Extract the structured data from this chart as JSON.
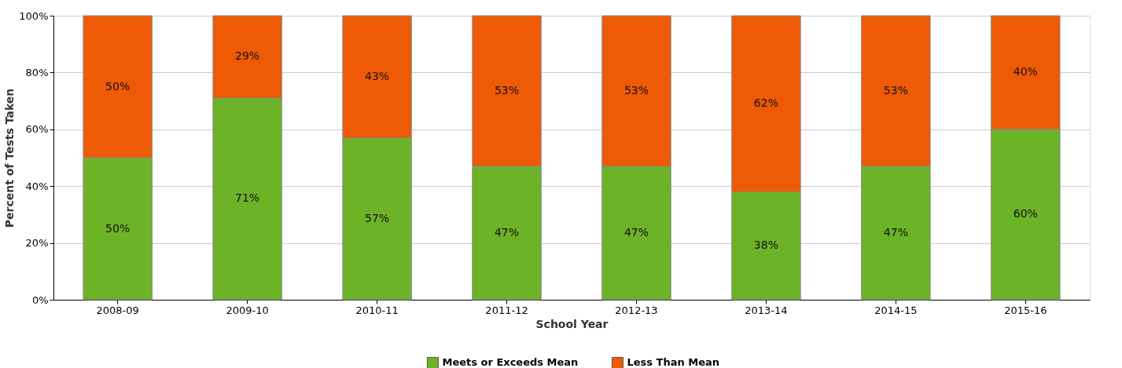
{
  "chart_data": {
    "type": "bar",
    "stacked": true,
    "xlabel": "School Year",
    "ylabel": "Percent of Tests Taken",
    "categories": [
      "2008-09",
      "2009-10",
      "2010-11",
      "2011-12",
      "2012-13",
      "2013-14",
      "2014-15",
      "2015-16"
    ],
    "series": [
      {
        "name": "Meets or Exceeds Mean",
        "color": "#6cb328",
        "values": [
          50,
          71,
          57,
          47,
          47,
          38,
          47,
          60
        ],
        "value_labels": [
          "50%",
          "71%",
          "57%",
          "47%",
          "47%",
          "38%",
          "47%",
          "60%"
        ]
      },
      {
        "name": "Less Than Mean",
        "color": "#ee5a06",
        "values": [
          50,
          29,
          43,
          53,
          53,
          62,
          53,
          40
        ],
        "value_labels": [
          "50%",
          "29%",
          "43%",
          "53%",
          "53%",
          "62%",
          "53%",
          "40%"
        ]
      }
    ],
    "ylim": [
      0,
      100
    ],
    "yticks": [
      {
        "value": 0,
        "label": "0%"
      },
      {
        "value": 20,
        "label": "20%"
      },
      {
        "value": 40,
        "label": "40%"
      },
      {
        "value": 60,
        "label": "60%"
      },
      {
        "value": 80,
        "label": "80%"
      },
      {
        "value": 100,
        "label": "100%"
      }
    ],
    "grid": "y",
    "legend": "bottom"
  }
}
